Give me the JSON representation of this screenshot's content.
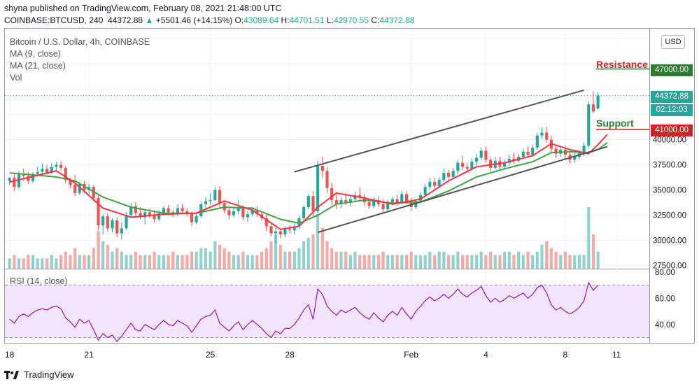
{
  "header": {
    "publisher_line": "shyna published on TradingView.com, February 08, 2021 21:48:00 UTC",
    "symbol": "COINBASE:BTCUSD, 240",
    "last": "44372.88",
    "change_arrow": "▲",
    "change": "+5501.46 (+14.15%)",
    "o_label": "O:",
    "o_value": "43089.64",
    "h_label": "H:",
    "h_value": "44701.51",
    "l_label": "L:",
    "l_value": "42970.55",
    "c_label": "C:",
    "c_value": "44372.88"
  },
  "legend": {
    "title": "Bitcoin / U.S. Dollar, 4h, COINBASE",
    "ma9": "MA (9, close)",
    "ma21": "MA (21, close)",
    "vol": "Vol",
    "rsi": "RSI (14, close)"
  },
  "currency_button": "USD",
  "price_tags": {
    "resistance_value": "47000.00",
    "last_price": "44372.88",
    "countdown": "02:12:03",
    "support_value": "41000.00"
  },
  "annotations": {
    "resistance": "Resistance",
    "support": "Support"
  },
  "footer": {
    "brand": "TradingView"
  },
  "colors": {
    "bull": "#26a69a",
    "bear": "#ef5350",
    "ma9": "#f23645",
    "ma21": "#43a047",
    "resistance": "#c62828",
    "support": "#2e7d32",
    "channel": "#555555",
    "rsi_line": "#9c27b0",
    "rsi_band": "#f1e4fb"
  },
  "chart_data": {
    "type": "candlestick",
    "price_axis": {
      "ticks": [
        27500,
        30000,
        32500,
        35000,
        37500,
        40000,
        42500,
        45000,
        47500,
        50000
      ],
      "tick_labels": [
        "27500.00",
        "30000.00",
        "32500.00",
        "35000.00",
        "37500.00",
        "40000.00",
        "",
        "",
        "",
        ""
      ],
      "range": [
        27200,
        51000
      ]
    },
    "x_axis": {
      "ticks": [
        0,
        17,
        43,
        60,
        86,
        102,
        119,
        130
      ],
      "tick_labels": [
        "18",
        "21",
        "25",
        "28",
        "Feb",
        "4",
        "8",
        "11"
      ],
      "range": [
        -1,
        137
      ]
    },
    "rsi_axis": {
      "ticks": [
        40,
        60,
        80
      ],
      "tick_labels": [
        "40.00",
        "60.00",
        "80.00"
      ],
      "range": [
        26,
        82
      ],
      "band": [
        30,
        70
      ]
    },
    "resistance_level": 47000,
    "support_level": 41000,
    "channel_upper": [
      [
        61,
        36800
      ],
      [
        123,
        44900
      ]
    ],
    "channel_lower": [
      [
        66,
        30800
      ],
      [
        128,
        39300
      ]
    ],
    "candles": [
      {
        "o": 35900,
        "h": 36300,
        "l": 35500,
        "c": 36200
      },
      {
        "o": 36200,
        "h": 36700,
        "l": 34900,
        "c": 35300
      },
      {
        "o": 35300,
        "h": 36900,
        "l": 35100,
        "c": 36600
      },
      {
        "o": 36600,
        "h": 37100,
        "l": 35900,
        "c": 36400
      },
      {
        "o": 36400,
        "h": 36800,
        "l": 35600,
        "c": 35900
      },
      {
        "o": 35900,
        "h": 36800,
        "l": 35700,
        "c": 36600
      },
      {
        "o": 36600,
        "h": 37300,
        "l": 36300,
        "c": 36800
      },
      {
        "o": 36800,
        "h": 37600,
        "l": 36400,
        "c": 37100
      },
      {
        "o": 37100,
        "h": 37500,
        "l": 36500,
        "c": 36700
      },
      {
        "o": 36700,
        "h": 37700,
        "l": 36600,
        "c": 37300
      },
      {
        "o": 37300,
        "h": 37800,
        "l": 36900,
        "c": 37500
      },
      {
        "o": 37500,
        "h": 37900,
        "l": 36900,
        "c": 37200
      },
      {
        "o": 37200,
        "h": 37400,
        "l": 35700,
        "c": 36000
      },
      {
        "o": 36000,
        "h": 36200,
        "l": 35200,
        "c": 35500
      },
      {
        "o": 35500,
        "h": 36500,
        "l": 34400,
        "c": 34700
      },
      {
        "o": 34700,
        "h": 35800,
        "l": 34500,
        "c": 35600
      },
      {
        "o": 35600,
        "h": 35900,
        "l": 34700,
        "c": 35000
      },
      {
        "o": 35000,
        "h": 35600,
        "l": 34600,
        "c": 35300
      },
      {
        "o": 35300,
        "h": 35500,
        "l": 33800,
        "c": 34200
      },
      {
        "o": 34200,
        "h": 34500,
        "l": 31000,
        "c": 31500
      },
      {
        "o": 31500,
        "h": 32600,
        "l": 30600,
        "c": 32400
      },
      {
        "o": 32400,
        "h": 32700,
        "l": 30900,
        "c": 31200
      },
      {
        "o": 31200,
        "h": 32200,
        "l": 30800,
        "c": 32000
      },
      {
        "o": 32000,
        "h": 32300,
        "l": 30300,
        "c": 30700
      },
      {
        "o": 30700,
        "h": 31800,
        "l": 30100,
        "c": 31200
      },
      {
        "o": 31200,
        "h": 32800,
        "l": 31000,
        "c": 32500
      },
      {
        "o": 32500,
        "h": 33700,
        "l": 32300,
        "c": 33400
      },
      {
        "o": 33400,
        "h": 33800,
        "l": 32400,
        "c": 32700
      },
      {
        "o": 32700,
        "h": 33300,
        "l": 32100,
        "c": 32300
      },
      {
        "o": 32300,
        "h": 33100,
        "l": 31600,
        "c": 32800
      },
      {
        "o": 32800,
        "h": 33200,
        "l": 32200,
        "c": 32500
      },
      {
        "o": 32500,
        "h": 32900,
        "l": 31800,
        "c": 32100
      },
      {
        "o": 32100,
        "h": 33000,
        "l": 31900,
        "c": 32700
      },
      {
        "o": 32700,
        "h": 33400,
        "l": 32600,
        "c": 33200
      },
      {
        "o": 33200,
        "h": 33500,
        "l": 32500,
        "c": 32800
      },
      {
        "o": 32800,
        "h": 33100,
        "l": 32300,
        "c": 32600
      },
      {
        "o": 32600,
        "h": 33600,
        "l": 32400,
        "c": 33200
      },
      {
        "o": 33200,
        "h": 33600,
        "l": 32600,
        "c": 32900
      },
      {
        "o": 32900,
        "h": 33200,
        "l": 32400,
        "c": 32700
      },
      {
        "o": 32700,
        "h": 32900,
        "l": 31400,
        "c": 31800
      },
      {
        "o": 31800,
        "h": 32600,
        "l": 31600,
        "c": 32400
      },
      {
        "o": 32400,
        "h": 33900,
        "l": 32200,
        "c": 33600
      },
      {
        "o": 33600,
        "h": 34300,
        "l": 33100,
        "c": 33900
      },
      {
        "o": 33900,
        "h": 34700,
        "l": 33500,
        "c": 34000
      },
      {
        "o": 34000,
        "h": 35300,
        "l": 33900,
        "c": 35000
      },
      {
        "o": 35000,
        "h": 35400,
        "l": 33200,
        "c": 33700
      },
      {
        "o": 33700,
        "h": 33900,
        "l": 32700,
        "c": 33000
      },
      {
        "o": 33000,
        "h": 33400,
        "l": 32100,
        "c": 32500
      },
      {
        "o": 32500,
        "h": 33200,
        "l": 32300,
        "c": 32900
      },
      {
        "o": 32900,
        "h": 34000,
        "l": 32600,
        "c": 33200
      },
      {
        "o": 33200,
        "h": 33500,
        "l": 32000,
        "c": 32300
      },
      {
        "o": 32300,
        "h": 32900,
        "l": 31800,
        "c": 32600
      },
      {
        "o": 32600,
        "h": 33300,
        "l": 32400,
        "c": 33000
      },
      {
        "o": 33000,
        "h": 33400,
        "l": 32300,
        "c": 32600
      },
      {
        "o": 32600,
        "h": 32900,
        "l": 31900,
        "c": 32200
      },
      {
        "o": 32200,
        "h": 32700,
        "l": 30900,
        "c": 31400
      },
      {
        "o": 31400,
        "h": 31800,
        "l": 30400,
        "c": 30700
      },
      {
        "o": 30700,
        "h": 31300,
        "l": 29700,
        "c": 30900
      },
      {
        "o": 30900,
        "h": 31200,
        "l": 30200,
        "c": 30600
      },
      {
        "o": 30600,
        "h": 31400,
        "l": 30300,
        "c": 31100
      },
      {
        "o": 31100,
        "h": 31500,
        "l": 30700,
        "c": 31000
      },
      {
        "o": 31000,
        "h": 31700,
        "l": 30600,
        "c": 31400
      },
      {
        "o": 31400,
        "h": 32500,
        "l": 31200,
        "c": 32200
      },
      {
        "o": 32200,
        "h": 33500,
        "l": 32000,
        "c": 33300
      },
      {
        "o": 33300,
        "h": 34600,
        "l": 33100,
        "c": 34400
      },
      {
        "o": 34400,
        "h": 34900,
        "l": 32400,
        "c": 32900
      },
      {
        "o": 32900,
        "h": 37900,
        "l": 32700,
        "c": 37400
      },
      {
        "o": 37400,
        "h": 38300,
        "l": 36200,
        "c": 36900
      },
      {
        "o": 36900,
        "h": 37300,
        "l": 34700,
        "c": 35200
      },
      {
        "o": 35200,
        "h": 35700,
        "l": 33500,
        "c": 34000
      },
      {
        "o": 34000,
        "h": 34600,
        "l": 33100,
        "c": 33600
      },
      {
        "o": 33600,
        "h": 34300,
        "l": 33200,
        "c": 34000
      },
      {
        "o": 34000,
        "h": 34700,
        "l": 33500,
        "c": 33800
      },
      {
        "o": 33800,
        "h": 34400,
        "l": 33400,
        "c": 34100
      },
      {
        "o": 34100,
        "h": 34800,
        "l": 33800,
        "c": 34500
      },
      {
        "o": 34500,
        "h": 35300,
        "l": 33900,
        "c": 34300
      },
      {
        "o": 34300,
        "h": 34600,
        "l": 33400,
        "c": 33800
      },
      {
        "o": 33800,
        "h": 34200,
        "l": 33100,
        "c": 33400
      },
      {
        "o": 33400,
        "h": 34300,
        "l": 33200,
        "c": 34000
      },
      {
        "o": 34000,
        "h": 34400,
        "l": 33300,
        "c": 33600
      },
      {
        "o": 33600,
        "h": 34100,
        "l": 32800,
        "c": 33100
      },
      {
        "o": 33100,
        "h": 34000,
        "l": 32900,
        "c": 33800
      },
      {
        "o": 33800,
        "h": 34300,
        "l": 33500,
        "c": 34100
      },
      {
        "o": 34100,
        "h": 34500,
        "l": 33400,
        "c": 33700
      },
      {
        "o": 33700,
        "h": 34900,
        "l": 33600,
        "c": 34600
      },
      {
        "o": 34600,
        "h": 34900,
        "l": 33600,
        "c": 33900
      },
      {
        "o": 33900,
        "h": 34200,
        "l": 32900,
        "c": 33300
      },
      {
        "o": 33300,
        "h": 34100,
        "l": 33100,
        "c": 33900
      },
      {
        "o": 33900,
        "h": 34800,
        "l": 33700,
        "c": 34500
      },
      {
        "o": 34500,
        "h": 35600,
        "l": 34300,
        "c": 35300
      },
      {
        "o": 35300,
        "h": 36200,
        "l": 35000,
        "c": 35800
      },
      {
        "o": 35800,
        "h": 36200,
        "l": 35100,
        "c": 35400
      },
      {
        "o": 35400,
        "h": 36300,
        "l": 35200,
        "c": 36000
      },
      {
        "o": 36000,
        "h": 37100,
        "l": 35800,
        "c": 36700
      },
      {
        "o": 36700,
        "h": 37000,
        "l": 36000,
        "c": 36300
      },
      {
        "o": 36300,
        "h": 37200,
        "l": 36100,
        "c": 36900
      },
      {
        "o": 36900,
        "h": 38000,
        "l": 36600,
        "c": 37700
      },
      {
        "o": 37700,
        "h": 38400,
        "l": 37000,
        "c": 37300
      },
      {
        "o": 37300,
        "h": 37700,
        "l": 36700,
        "c": 37100
      },
      {
        "o": 37100,
        "h": 38100,
        "l": 36900,
        "c": 37800
      },
      {
        "o": 37800,
        "h": 38600,
        "l": 37400,
        "c": 38200
      },
      {
        "o": 38200,
        "h": 39200,
        "l": 38000,
        "c": 38900
      },
      {
        "o": 38900,
        "h": 39300,
        "l": 37700,
        "c": 38000
      },
      {
        "o": 38000,
        "h": 38300,
        "l": 36800,
        "c": 37200
      },
      {
        "o": 37200,
        "h": 38300,
        "l": 37000,
        "c": 37900
      },
      {
        "o": 37900,
        "h": 38300,
        "l": 36900,
        "c": 37300
      },
      {
        "o": 37300,
        "h": 38000,
        "l": 37000,
        "c": 37700
      },
      {
        "o": 37700,
        "h": 38500,
        "l": 37400,
        "c": 38100
      },
      {
        "o": 38100,
        "h": 38700,
        "l": 37600,
        "c": 37900
      },
      {
        "o": 37900,
        "h": 38600,
        "l": 37700,
        "c": 38300
      },
      {
        "o": 38300,
        "h": 39100,
        "l": 38100,
        "c": 38800
      },
      {
        "o": 38800,
        "h": 39300,
        "l": 38200,
        "c": 38500
      },
      {
        "o": 38500,
        "h": 39500,
        "l": 38300,
        "c": 39200
      },
      {
        "o": 39200,
        "h": 40700,
        "l": 39000,
        "c": 40400
      },
      {
        "o": 40400,
        "h": 41200,
        "l": 40100,
        "c": 40700
      },
      {
        "o": 40700,
        "h": 41300,
        "l": 39700,
        "c": 40000
      },
      {
        "o": 40000,
        "h": 40400,
        "l": 38700,
        "c": 39100
      },
      {
        "o": 39100,
        "h": 39500,
        "l": 38200,
        "c": 38600
      },
      {
        "o": 38600,
        "h": 39300,
        "l": 38300,
        "c": 39000
      },
      {
        "o": 39000,
        "h": 39400,
        "l": 38100,
        "c": 38500
      },
      {
        "o": 38500,
        "h": 38900,
        "l": 37600,
        "c": 38000
      },
      {
        "o": 38000,
        "h": 38700,
        "l": 37700,
        "c": 38300
      },
      {
        "o": 38300,
        "h": 39000,
        "l": 38000,
        "c": 38700
      },
      {
        "o": 38700,
        "h": 39700,
        "l": 38400,
        "c": 39400
      },
      {
        "o": 39400,
        "h": 43800,
        "l": 39200,
        "c": 43500
      },
      {
        "o": 43500,
        "h": 44800,
        "l": 42600,
        "c": 42800
      },
      {
        "o": 43090,
        "h": 44700,
        "l": 42970,
        "c": 44370
      }
    ],
    "ma9": [
      [
        0,
        35800
      ],
      [
        10,
        36900
      ],
      [
        14,
        35700
      ],
      [
        20,
        33200
      ],
      [
        26,
        32300
      ],
      [
        33,
        32600
      ],
      [
        40,
        32700
      ],
      [
        46,
        33900
      ],
      [
        52,
        33000
      ],
      [
        58,
        31100
      ],
      [
        62,
        31400
      ],
      [
        66,
        33300
      ],
      [
        70,
        34700
      ],
      [
        76,
        34200
      ],
      [
        82,
        33600
      ],
      [
        88,
        34100
      ],
      [
        94,
        35900
      ],
      [
        100,
        37300
      ],
      [
        106,
        37700
      ],
      [
        112,
        38400
      ],
      [
        116,
        39600
      ],
      [
        120,
        39000
      ],
      [
        124,
        38600
      ],
      [
        126,
        39500
      ],
      [
        128,
        40500
      ]
    ],
    "ma21": [
      [
        0,
        36700
      ],
      [
        10,
        36300
      ],
      [
        14,
        35900
      ],
      [
        20,
        34300
      ],
      [
        26,
        33300
      ],
      [
        33,
        32700
      ],
      [
        40,
        32700
      ],
      [
        46,
        33300
      ],
      [
        52,
        33200
      ],
      [
        58,
        32100
      ],
      [
        62,
        31700
      ],
      [
        66,
        32500
      ],
      [
        70,
        33600
      ],
      [
        76,
        34000
      ],
      [
        82,
        33700
      ],
      [
        88,
        33800
      ],
      [
        94,
        34900
      ],
      [
        100,
        36300
      ],
      [
        106,
        37100
      ],
      [
        112,
        37800
      ],
      [
        116,
        38700
      ],
      [
        120,
        38800
      ],
      [
        124,
        38700
      ],
      [
        126,
        39000
      ],
      [
        128,
        39700
      ]
    ],
    "volumes": [
      3,
      4,
      3,
      3,
      4,
      4,
      3,
      3,
      3,
      4,
      3,
      4,
      5,
      4,
      6,
      4,
      4,
      4,
      6,
      11,
      8,
      7,
      5,
      6,
      5,
      4,
      4,
      5,
      4,
      4,
      4,
      5,
      4,
      4,
      4,
      5,
      4,
      4,
      4,
      5,
      5,
      6,
      6,
      5,
      8,
      7,
      6,
      5,
      4,
      4,
      5,
      4,
      4,
      4,
      5,
      6,
      8,
      10,
      7,
      5,
      5,
      5,
      6,
      8,
      9,
      10,
      16,
      12,
      8,
      6,
      5,
      5,
      5,
      4,
      5,
      4,
      4,
      4,
      4,
      4,
      5,
      4,
      4,
      4,
      4,
      4,
      5,
      4,
      4,
      4,
      5,
      4,
      5,
      5,
      4,
      4,
      5,
      4,
      4,
      4,
      4,
      5,
      4,
      5,
      4,
      4,
      5,
      5,
      4,
      5,
      4,
      5,
      4,
      5,
      7,
      8,
      6,
      5,
      4,
      5,
      4,
      4,
      4,
      4,
      18,
      10,
      5
    ],
    "rsi": [
      44,
      41,
      46,
      48,
      46,
      49,
      51,
      52,
      51,
      53,
      54,
      52,
      45,
      42,
      38,
      44,
      41,
      43,
      36,
      28,
      33,
      30,
      32,
      27,
      31,
      36,
      41,
      36,
      35,
      40,
      38,
      36,
      40,
      43,
      40,
      39,
      43,
      41,
      39,
      34,
      39,
      44,
      46,
      47,
      51,
      41,
      38,
      35,
      39,
      42,
      36,
      40,
      43,
      40,
      37,
      33,
      30,
      35,
      33,
      37,
      37,
      40,
      45,
      51,
      55,
      44,
      67,
      63,
      54,
      50,
      47,
      51,
      49,
      51,
      53,
      49,
      46,
      44,
      49,
      45,
      42,
      47,
      50,
      47,
      53,
      48,
      44,
      50,
      54,
      58,
      61,
      58,
      60,
      63,
      60,
      63,
      67,
      63,
      61,
      64,
      66,
      69,
      62,
      57,
      60,
      57,
      59,
      62,
      60,
      62,
      64,
      60,
      63,
      68,
      70,
      64,
      55,
      51,
      53,
      50,
      48,
      50,
      53,
      58,
      72,
      66,
      70
    ]
  }
}
